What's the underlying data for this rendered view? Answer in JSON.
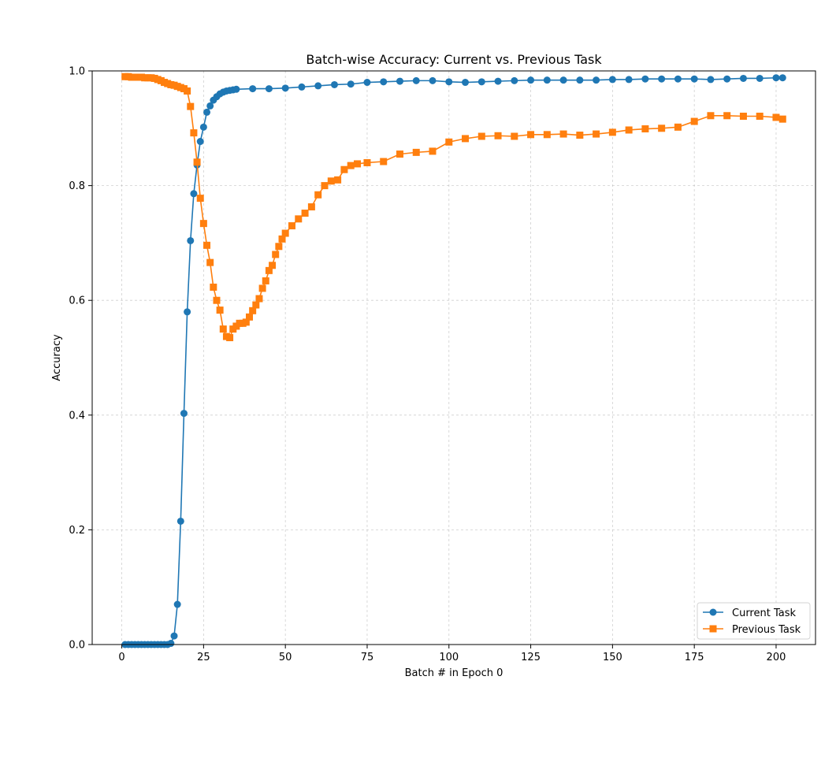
{
  "chart_data": {
    "type": "line",
    "title": "Batch-wise Accuracy: Current vs. Previous Task",
    "xlabel": "Batch # in Epoch 0",
    "ylabel": "Accuracy",
    "xlim": [
      -9.05,
      212.05
    ],
    "ylim": [
      0,
      1
    ],
    "xticks": [
      0,
      25,
      50,
      75,
      100,
      125,
      150,
      175,
      200
    ],
    "yticks": [
      0.0,
      0.2,
      0.4,
      0.6,
      0.8,
      1.0
    ],
    "grid": true,
    "legend_position": "lower-right",
    "series": [
      {
        "name": "Current Task",
        "color": "#1f77b4",
        "marker": "circle",
        "x": [
          1,
          2,
          3,
          4,
          5,
          6,
          7,
          8,
          9,
          10,
          11,
          12,
          13,
          14,
          15,
          16,
          17,
          18,
          19,
          20,
          21,
          22,
          23,
          24,
          25,
          26,
          27,
          28,
          29,
          30,
          31,
          32,
          33,
          34,
          35,
          40,
          45,
          50,
          55,
          60,
          65,
          70,
          75,
          80,
          85,
          90,
          95,
          100,
          105,
          110,
          115,
          120,
          125,
          130,
          135,
          140,
          145,
          150,
          155,
          160,
          165,
          170,
          175,
          180,
          185,
          190,
          195,
          200,
          202
        ],
        "y": [
          0.0,
          0.0,
          0.0,
          0.0,
          0.0,
          0.0,
          0.0,
          0.0,
          0.0,
          0.0,
          0.0,
          0.0,
          0.0,
          0.0,
          0.002,
          0.015,
          0.07,
          0.215,
          0.403,
          0.58,
          0.704,
          0.786,
          0.836,
          0.877,
          0.902,
          0.928,
          0.939,
          0.949,
          0.955,
          0.96,
          0.963,
          0.965,
          0.966,
          0.967,
          0.968,
          0.969,
          0.969,
          0.97,
          0.972,
          0.974,
          0.976,
          0.977,
          0.98,
          0.981,
          0.982,
          0.983,
          0.983,
          0.981,
          0.98,
          0.981,
          0.982,
          0.983,
          0.984,
          0.984,
          0.984,
          0.984,
          0.984,
          0.985,
          0.985,
          0.986,
          0.986,
          0.986,
          0.986,
          0.985,
          0.986,
          0.987,
          0.987,
          0.988,
          0.988
        ]
      },
      {
        "name": "Previous Task",
        "color": "#ff7f0e",
        "marker": "square",
        "x": [
          1,
          2,
          3,
          4,
          5,
          6,
          7,
          8,
          9,
          10,
          11,
          12,
          13,
          14,
          15,
          16,
          17,
          18,
          19,
          20,
          21,
          22,
          23,
          24,
          25,
          26,
          27,
          28,
          29,
          30,
          31,
          32,
          33,
          34,
          35,
          36,
          37,
          38,
          39,
          40,
          41,
          42,
          43,
          44,
          45,
          46,
          47,
          48,
          49,
          50,
          52,
          54,
          56,
          58,
          60,
          62,
          64,
          66,
          68,
          70,
          72,
          75,
          80,
          85,
          90,
          95,
          100,
          105,
          110,
          115,
          120,
          125,
          130,
          135,
          140,
          145,
          150,
          155,
          160,
          165,
          170,
          175,
          180,
          185,
          190,
          195,
          200,
          202
        ],
        "y": [
          0.99,
          0.99,
          0.989,
          0.989,
          0.989,
          0.989,
          0.988,
          0.988,
          0.988,
          0.987,
          0.985,
          0.983,
          0.98,
          0.978,
          0.976,
          0.975,
          0.973,
          0.971,
          0.969,
          0.965,
          0.938,
          0.892,
          0.841,
          0.778,
          0.734,
          0.696,
          0.666,
          0.623,
          0.6,
          0.583,
          0.55,
          0.537,
          0.535,
          0.55,
          0.555,
          0.56,
          0.56,
          0.562,
          0.571,
          0.582,
          0.592,
          0.603,
          0.621,
          0.634,
          0.652,
          0.661,
          0.68,
          0.694,
          0.707,
          0.717,
          0.73,
          0.742,
          0.752,
          0.763,
          0.784,
          0.8,
          0.808,
          0.81,
          0.828,
          0.835,
          0.838,
          0.84,
          0.842,
          0.855,
          0.858,
          0.86,
          0.876,
          0.882,
          0.886,
          0.887,
          0.886,
          0.889,
          0.889,
          0.89,
          0.888,
          0.89,
          0.893,
          0.897,
          0.899,
          0.9,
          0.902,
          0.912,
          0.922,
          0.922,
          0.921,
          0.921,
          0.919,
          0.916
        ]
      }
    ]
  }
}
